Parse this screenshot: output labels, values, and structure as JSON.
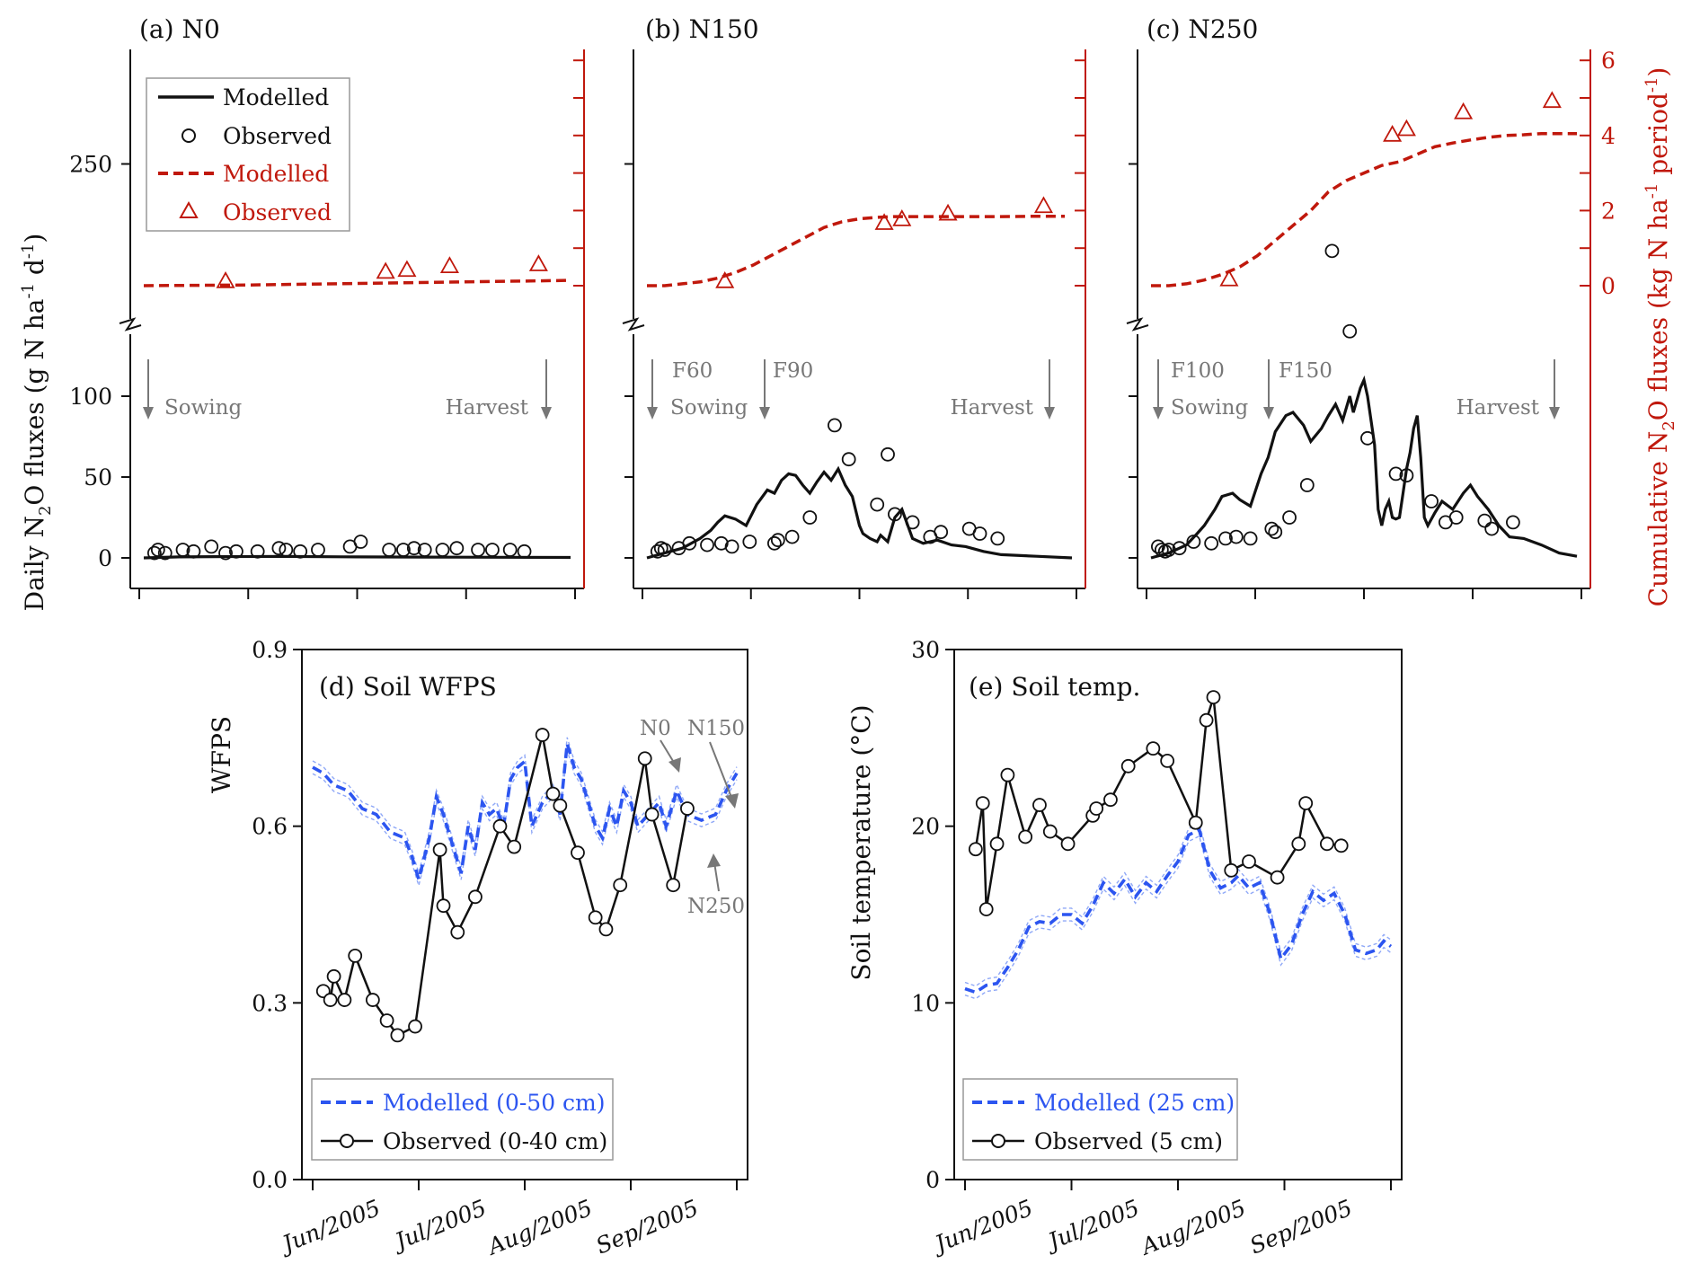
{
  "colors": {
    "black": "#111111",
    "red": "#c0180c",
    "blue": "#2c55f0",
    "lightblue": "#8fa8f7",
    "gray": "#777777"
  },
  "top_panels": {
    "y_left_label_parts": [
      "Daily N",
      "2",
      "O fluxes (g N ha",
      "-1",
      " d",
      "-1",
      ")"
    ],
    "y_right_label_parts": [
      "Cumulative N",
      "2",
      "O fluxes (kg N ha",
      "-1",
      " period",
      "-1",
      ")"
    ],
    "left_ticks_lower": [
      "0",
      "50",
      "100"
    ],
    "left_tick_upper": "250",
    "right_ticks": [
      "0",
      "2",
      "4",
      "6"
    ],
    "legend": {
      "modelled_black": "Modelled",
      "observed_black": "Observed",
      "modelled_red": "Modelled",
      "observed_red": "Observed"
    }
  },
  "chart_data": [
    {
      "type": "line",
      "panel": "a",
      "title": "(a) N0",
      "annotations": [
        "Sowing",
        "Harvest"
      ],
      "series": [
        {
          "name": "Modelled",
          "kind": "daily_modelled",
          "x": [
            0,
            10,
            20,
            40,
            60,
            80,
            100,
            120
          ],
          "y": [
            0,
            0.6,
            0.8,
            0.9,
            0.6,
            0.5,
            0.4,
            0.3
          ]
        },
        {
          "name": "Observed",
          "kind": "daily_observed",
          "x": [
            3,
            4,
            6,
            11,
            14,
            19,
            23,
            26,
            32,
            38,
            40,
            44,
            49,
            58,
            61,
            69,
            73,
            76,
            79,
            84,
            88,
            94,
            98,
            103,
            107
          ],
          "y": [
            3,
            5,
            3,
            5,
            4,
            7,
            3,
            4,
            4,
            6,
            5,
            4,
            5,
            7,
            10,
            5,
            5,
            6,
            5,
            5,
            6,
            5,
            5,
            5,
            4
          ]
        },
        {
          "name": "Modelled",
          "kind": "cum_modelled",
          "x": [
            0,
            30,
            60,
            90,
            120
          ],
          "y": [
            0,
            0.02,
            0.06,
            0.1,
            0.14
          ]
        },
        {
          "name": "Observed",
          "kind": "cum_observed",
          "x": [
            23,
            68,
            74,
            86,
            111
          ],
          "y": [
            0.1,
            0.35,
            0.4,
            0.5,
            0.55
          ]
        }
      ]
    },
    {
      "type": "line",
      "panel": "b",
      "title": "(b) N150",
      "annotations": [
        "F60",
        "F90",
        "Sowing",
        "Harvest"
      ],
      "series": [
        {
          "name": "Modelled",
          "kind": "daily_modelled",
          "x": [
            0,
            5,
            10,
            15,
            18,
            20,
            22,
            25,
            28,
            31,
            34,
            36,
            38,
            40,
            42,
            44,
            46,
            48,
            50,
            52,
            54,
            56,
            58,
            60,
            61,
            63,
            65,
            66,
            68,
            70,
            72,
            75,
            78,
            82,
            86,
            90,
            95,
            100,
            110,
            120
          ],
          "y": [
            0,
            3,
            6,
            12,
            17,
            22,
            26,
            24,
            20,
            33,
            42,
            40,
            48,
            52,
            51,
            45,
            40,
            47,
            53,
            48,
            55,
            45,
            38,
            20,
            15,
            12,
            10,
            14,
            10,
            25,
            30,
            12,
            9,
            11,
            8,
            7,
            4,
            2,
            1,
            0
          ]
        },
        {
          "name": "Observed",
          "kind": "daily_observed",
          "x": [
            3,
            4,
            5,
            9,
            12,
            17,
            21,
            24,
            29,
            36,
            37,
            41,
            46,
            53,
            57,
            65,
            68,
            70,
            75,
            80,
            83,
            91,
            94,
            99
          ],
          "y": [
            4,
            6,
            5,
            6,
            9,
            8,
            9,
            7,
            10,
            9,
            11,
            13,
            25,
            82,
            61,
            33,
            64,
            27,
            22,
            13,
            16,
            18,
            15,
            12
          ]
        },
        {
          "name": "Modelled",
          "kind": "cum_modelled",
          "x": [
            0,
            5,
            10,
            15,
            20,
            25,
            30,
            35,
            40,
            45,
            50,
            55,
            60,
            65,
            70,
            80,
            90,
            100,
            110,
            118
          ],
          "y": [
            0,
            0,
            0.05,
            0.1,
            0.2,
            0.35,
            0.55,
            0.8,
            1.05,
            1.3,
            1.55,
            1.7,
            1.78,
            1.82,
            1.84,
            1.84,
            1.84,
            1.84,
            1.85,
            1.85
          ]
        },
        {
          "name": "Observed",
          "kind": "cum_observed",
          "x": [
            22,
            67,
            72,
            85,
            112
          ],
          "y": [
            0.1,
            1.65,
            1.75,
            1.9,
            2.1
          ]
        }
      ]
    },
    {
      "type": "line",
      "panel": "c",
      "title": "(c) N250",
      "annotations": [
        "F100",
        "F150",
        "Sowing",
        "Harvest"
      ],
      "series": [
        {
          "name": "Modelled",
          "kind": "daily_modelled",
          "x": [
            0,
            5,
            10,
            13,
            15,
            18,
            20,
            23,
            25,
            28,
            31,
            33,
            35,
            38,
            40,
            43,
            45,
            48,
            50,
            52,
            54,
            56,
            57,
            59,
            60,
            61,
            63,
            64,
            65,
            66,
            67,
            68,
            69,
            70,
            71,
            72,
            73,
            74,
            75,
            76,
            77,
            78,
            80,
            82,
            85,
            88,
            90,
            92,
            95,
            98,
            101,
            105,
            110,
            115,
            120
          ],
          "y": [
            0,
            3,
            8,
            15,
            20,
            30,
            38,
            40,
            36,
            32,
            52,
            62,
            78,
            88,
            90,
            82,
            72,
            80,
            88,
            95,
            85,
            100,
            90,
            105,
            110,
            100,
            70,
            30,
            20,
            30,
            35,
            25,
            24,
            25,
            40,
            55,
            65,
            80,
            88,
            62,
            25,
            20,
            28,
            35,
            30,
            40,
            45,
            38,
            30,
            20,
            13,
            12,
            8,
            3,
            1
          ]
        },
        {
          "name": "Observed",
          "kind": "daily_observed",
          "x": [
            2,
            3,
            4,
            5,
            8,
            12,
            17,
            21,
            24,
            28,
            34,
            35,
            39,
            44,
            51,
            56,
            61,
            69,
            72,
            79,
            83,
            86,
            94,
            96,
            102
          ],
          "y": [
            7,
            5,
            4,
            5,
            6,
            10,
            9,
            12,
            13,
            12,
            18,
            16,
            25,
            45,
            185,
            125,
            74,
            52,
            51,
            35,
            22,
            25,
            23,
            18,
            22
          ]
        },
        {
          "name": "Modelled",
          "kind": "cum_modelled",
          "x": [
            0,
            5,
            10,
            15,
            20,
            25,
            30,
            35,
            40,
            45,
            50,
            55,
            60,
            65,
            70,
            75,
            80,
            85,
            90,
            95,
            100,
            105,
            110,
            115,
            120
          ],
          "y": [
            0,
            0,
            0.05,
            0.15,
            0.3,
            0.5,
            0.8,
            1.2,
            1.6,
            2.0,
            2.5,
            2.8,
            3.0,
            3.2,
            3.3,
            3.5,
            3.7,
            3.8,
            3.88,
            3.95,
            4.0,
            4.02,
            4.05,
            4.05,
            4.05
          ]
        },
        {
          "name": "Observed",
          "kind": "cum_observed",
          "x": [
            22,
            68,
            72,
            88,
            113
          ],
          "y": [
            0.15,
            4.0,
            4.15,
            4.6,
            4.9
          ]
        }
      ]
    },
    {
      "type": "line",
      "panel": "d",
      "title": "(d) Soil WFPS",
      "ylabel": "WFPS",
      "ylim": [
        0,
        0.9
      ],
      "yticks": [
        "0.0",
        "0.3",
        "0.6",
        "0.9"
      ],
      "xticks": [
        "Jun/2005",
        "Jul/2005",
        "Aug/2005",
        "Sep/2005"
      ],
      "annotations": [
        "N0",
        "N150",
        "N250"
      ],
      "series": [
        {
          "name": "Modelled (0-50 cm)",
          "x": [
            0,
            3,
            6,
            10,
            14,
            18,
            22,
            26,
            28,
            30,
            33,
            35,
            37,
            40,
            42,
            44,
            46,
            48,
            50,
            52,
            54,
            56,
            58,
            60,
            62,
            65,
            68,
            70,
            72,
            74,
            76,
            78,
            80,
            82,
            84,
            86,
            88,
            90,
            92,
            95,
            98,
            100,
            103,
            106,
            110,
            114,
            117,
            120
          ],
          "y": [
            0.7,
            0.69,
            0.67,
            0.66,
            0.63,
            0.62,
            0.59,
            0.58,
            0.55,
            0.51,
            0.58,
            0.65,
            0.62,
            0.56,
            0.52,
            0.6,
            0.56,
            0.64,
            0.62,
            0.63,
            0.6,
            0.68,
            0.7,
            0.71,
            0.6,
            0.64,
            0.66,
            0.62,
            0.74,
            0.7,
            0.68,
            0.64,
            0.6,
            0.58,
            0.63,
            0.6,
            0.66,
            0.64,
            0.6,
            0.62,
            0.64,
            0.6,
            0.66,
            0.62,
            0.61,
            0.62,
            0.66,
            0.69
          ]
        },
        {
          "name": "Observed (0-40 cm)",
          "x": [
            3,
            5,
            6,
            9,
            12,
            17,
            21,
            24,
            29,
            36,
            37,
            41,
            46,
            53,
            57,
            65,
            68,
            70,
            75,
            80,
            83,
            87,
            94,
            96,
            102,
            106
          ],
          "y": [
            0.32,
            0.305,
            0.345,
            0.305,
            0.38,
            0.305,
            0.27,
            0.245,
            0.26,
            0.56,
            0.465,
            0.42,
            0.48,
            0.6,
            0.565,
            0.755,
            0.655,
            0.635,
            0.555,
            0.445,
            0.425,
            0.5,
            0.715,
            0.62,
            0.5,
            0.63
          ]
        }
      ]
    },
    {
      "type": "line",
      "panel": "e",
      "title": "(e) Soil temp.",
      "ylabel": "Soil temperature (°C)",
      "ylim": [
        0,
        30
      ],
      "yticks": [
        "0",
        "10",
        "20",
        "30"
      ],
      "xticks": [
        "Jun/2005",
        "Jul/2005",
        "Aug/2005",
        "Sep/2005"
      ],
      "series": [
        {
          "name": "Modelled (25 cm)",
          "x": [
            0,
            3,
            6,
            9,
            12,
            15,
            18,
            21,
            24,
            27,
            30,
            33,
            36,
            39,
            42,
            45,
            48,
            51,
            54,
            57,
            60,
            63,
            66,
            69,
            72,
            75,
            77,
            80,
            83,
            86,
            89,
            92,
            95,
            98,
            101,
            104,
            107,
            110,
            113,
            116,
            118,
            120
          ],
          "y": [
            10.8,
            10.6,
            11,
            11.1,
            12,
            13,
            14.3,
            14.6,
            14.5,
            15,
            15,
            14.5,
            15.5,
            16.8,
            16.2,
            17,
            16,
            16.8,
            16.3,
            17.2,
            18,
            19.5,
            19.8,
            17.5,
            16.5,
            16.8,
            17.2,
            16.5,
            16.8,
            15,
            12.5,
            13.3,
            15,
            16.3,
            15.8,
            16.2,
            15,
            13,
            12.8,
            13,
            13.5,
            13.2
          ]
        },
        {
          "name": "Observed (5 cm)",
          "x": [
            3,
            5,
            6,
            9,
            12,
            17,
            21,
            24,
            29,
            36,
            37,
            41,
            46,
            53,
            57,
            65,
            68,
            70,
            75,
            80,
            88,
            94,
            96,
            102,
            106
          ],
          "y": [
            18.7,
            21.3,
            15.3,
            19,
            22.9,
            19.4,
            21.2,
            19.7,
            19,
            20.6,
            21,
            21.5,
            23.4,
            24.4,
            23.7,
            20.2,
            26,
            27.3,
            17.5,
            18,
            17.1,
            19,
            21.3,
            19,
            18.9
          ]
        }
      ]
    }
  ]
}
